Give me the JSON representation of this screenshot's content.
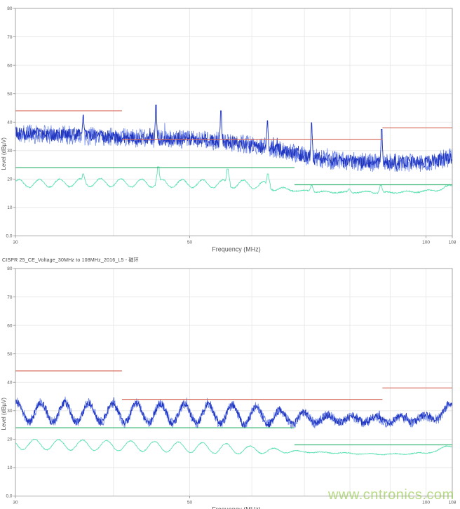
{
  "page": {
    "watermark_text": "www.cntronics.com",
    "watermark_color": "#8dc63f"
  },
  "chart_data": [
    {
      "type": "line",
      "title": "",
      "xlabel": "Frequency (MHz)",
      "ylabel": "Level (dBµV)",
      "x_scale": "log",
      "xlim": [
        30,
        108
      ],
      "ylim": [
        0,
        80
      ],
      "x_ticks": [
        30,
        50,
        100,
        108
      ],
      "x_tick_labels": [
        "30",
        "50",
        "100",
        "108"
      ],
      "x_gridlines": [
        40,
        50,
        60,
        70,
        80,
        90,
        100
      ],
      "y_ticks": [
        0,
        10,
        20,
        30,
        40,
        50,
        60,
        70,
        80
      ],
      "y_tick_labels": [
        "0.0",
        "10",
        "20",
        "30",
        "40",
        "50",
        "60",
        "70",
        "80"
      ],
      "grid": true,
      "legend": "none",
      "series": [
        {
          "name": "peak-limit-line",
          "kind": "limit",
          "color": "#d4695a",
          "segments": [
            [
              30,
              41,
              44
            ],
            [
              41,
              88,
              34
            ],
            [
              88,
              108,
              38
            ]
          ]
        },
        {
          "name": "average-limit-line",
          "kind": "limit",
          "color": "#2eb46e",
          "segments": [
            [
              30,
              68,
              24
            ],
            [
              68,
              108,
              18
            ]
          ]
        },
        {
          "name": "peak-measurement-trace",
          "kind": "trace",
          "color": "#2136c0",
          "color2": "#6e86ea",
          "noise_db": 2.3,
          "burst": 2.5,
          "spike_w": 0.002,
          "envelope": [
            [
              30,
              36
            ],
            [
              33,
              35.7
            ],
            [
              36,
              35.3
            ],
            [
              40,
              34.7
            ],
            [
              44,
              34.2
            ],
            [
              48,
              34
            ],
            [
              52,
              33.7
            ],
            [
              56,
              33
            ],
            [
              60,
              32
            ],
            [
              63,
              31
            ],
            [
              66,
              30
            ],
            [
              69,
              28.6
            ],
            [
              72,
              27.4
            ],
            [
              76,
              26.6
            ],
            [
              80,
              26.2
            ],
            [
              85,
              25.9
            ],
            [
              90,
              25.7
            ],
            [
              95,
              25.7
            ],
            [
              100,
              26
            ],
            [
              103,
              26.4
            ],
            [
              106,
              27.2
            ],
            [
              108,
              27.8
            ]
          ],
          "spikes": [
            [
              36.6,
              42.5
            ],
            [
              45.3,
              46
            ],
            [
              54.8,
              44
            ],
            [
              62.8,
              40.5
            ],
            [
              71.5,
              39.8
            ],
            [
              87.8,
              37.5
            ]
          ]
        },
        {
          "name": "average-measurement-trace",
          "kind": "trace",
          "color": "#55e0ae",
          "noise_db": 0.2,
          "wave_amp": 1.4,
          "wave_period": 0.026,
          "wave_phase": 0.5,
          "wave_taper": [
            62,
            68,
            0.25
          ],
          "end_ramp": [
            100,
            0.8
          ],
          "spike_w": 0.0035,
          "envelope": [
            [
              30,
              18.4
            ],
            [
              34,
              18.6
            ],
            [
              38,
              18.8
            ],
            [
              42,
              18.6
            ],
            [
              46,
              18.5
            ],
            [
              50,
              18.4
            ],
            [
              54,
              18.3
            ],
            [
              58,
              18.3
            ],
            [
              62,
              17.8
            ],
            [
              64,
              17
            ],
            [
              66,
              16.3
            ],
            [
              68,
              16
            ],
            [
              71,
              15.7
            ],
            [
              75,
              15.4
            ],
            [
              80,
              15.3
            ],
            [
              84,
              15.5
            ],
            [
              86,
              15.3
            ],
            [
              90,
              15.2
            ],
            [
              94,
              15.5
            ],
            [
              97,
              15.5
            ],
            [
              100,
              15.8
            ],
            [
              103,
              16.2
            ],
            [
              106,
              16.9
            ],
            [
              108,
              17.5
            ]
          ],
          "spikes": [
            [
              36.6,
              21.8
            ],
            [
              45.6,
              24.3
            ],
            [
              55.9,
              23.5
            ],
            [
              62.9,
              21.8
            ],
            [
              71.5,
              17.8
            ],
            [
              79.8,
              16.5
            ],
            [
              87.6,
              17.8
            ]
          ]
        }
      ]
    },
    {
      "type": "line",
      "title": "CISPR 25_CE_Voltage_30MHz to 108MHz_2016_L5 - 磁环",
      "xlabel": "Frequency (MHz)",
      "ylabel": "Level (dBµV)",
      "x_scale": "log",
      "xlim": [
        30,
        108
      ],
      "ylim": [
        0,
        80
      ],
      "x_ticks": [
        30,
        50,
        100,
        108
      ],
      "x_tick_labels": [
        "30",
        "50",
        "100",
        "108"
      ],
      "x_gridlines": [
        40,
        50,
        60,
        70,
        80,
        90,
        100
      ],
      "y_ticks": [
        0,
        10,
        20,
        30,
        40,
        50,
        60,
        70,
        80
      ],
      "y_tick_labels": [
        "0.0",
        "10",
        "20",
        "30",
        "40",
        "50",
        "60",
        "70",
        "80"
      ],
      "grid": true,
      "legend": "none",
      "series": [
        {
          "name": "peak-limit-line",
          "kind": "limit",
          "color": "#d4695a",
          "segments": [
            [
              30,
              41,
              44
            ],
            [
              41,
              88,
              34
            ],
            [
              88,
              108,
              38
            ]
          ]
        },
        {
          "name": "average-limit-line",
          "kind": "limit",
          "color": "#2eb46e",
          "segments": [
            [
              30,
              68,
              24
            ],
            [
              68,
              108,
              18
            ]
          ]
        },
        {
          "name": "peak-measurement-trace",
          "kind": "trace",
          "color": "#2136c0",
          "color2": "#6e86ea",
          "noise_db": 1.25,
          "burst": 1.5,
          "wave_amp": 3.4,
          "wave_period": 0.0305,
          "wave_phase": 1.2,
          "wave_taper": [
            58,
            78,
            1.0
          ],
          "end_ramp": [
            103,
            2.6
          ],
          "spike_w": 0.002,
          "envelope": [
            [
              30,
              29.4
            ],
            [
              36,
              29.4
            ],
            [
              42,
              29.2
            ],
            [
              48,
              29
            ],
            [
              54,
              28.8
            ],
            [
              60,
              28.3
            ],
            [
              64,
              27.9
            ],
            [
              68,
              27.5
            ],
            [
              72,
              27.2
            ],
            [
              76,
              27
            ],
            [
              80,
              26.9
            ],
            [
              85,
              26.8
            ],
            [
              90,
              26.7
            ],
            [
              95,
              26.9
            ],
            [
              100,
              27.3
            ],
            [
              103,
              27.9
            ],
            [
              105,
              28.9
            ],
            [
              107,
              30.3
            ],
            [
              108,
              31
            ]
          ],
          "spikes": []
        },
        {
          "name": "average-measurement-trace",
          "kind": "trace",
          "color": "#55e0ae",
          "noise_db": 0.15,
          "wave_amp": 1.8,
          "wave_period": 0.0305,
          "wave_phase": 2.8,
          "wave_taper": [
            56,
            70,
            0.2
          ],
          "end_ramp": [
            103,
            1.1
          ],
          "spike_w": 0.0035,
          "envelope": [
            [
              30,
              18.2
            ],
            [
              36,
              17.9
            ],
            [
              42,
              17.6
            ],
            [
              48,
              17.2
            ],
            [
              54,
              16.8
            ],
            [
              60,
              16.2
            ],
            [
              66,
              15.8
            ],
            [
              72,
              15.4
            ],
            [
              78,
              15.1
            ],
            [
              84,
              14.8
            ],
            [
              90,
              14.7
            ],
            [
              96,
              14.9
            ],
            [
              100,
              15.2
            ],
            [
              103,
              15.8
            ],
            [
              105,
              16.6
            ],
            [
              107,
              17.8
            ],
            [
              108,
              18.4
            ]
          ],
          "spikes": []
        }
      ]
    }
  ]
}
